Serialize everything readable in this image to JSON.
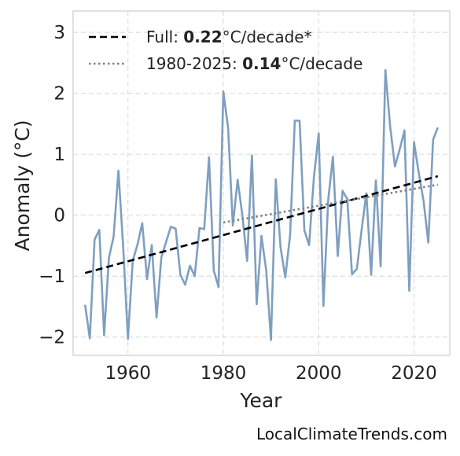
{
  "chart_data": {
    "type": "line",
    "xlabel": "Year",
    "ylabel": "Anomaly (°C)",
    "xlim": [
      1948.5,
      2027.5
    ],
    "ylim": [
      -2.3,
      3.35
    ],
    "x_ticks": [
      1960,
      1980,
      2000,
      2020
    ],
    "x_tick_labels": [
      "1960",
      "1980",
      "2000",
      "2020"
    ],
    "y_ticks": [
      -2,
      -1,
      0,
      1,
      2,
      3
    ],
    "y_tick_labels": [
      "−2",
      "−1",
      "0",
      "1",
      "2",
      "3"
    ],
    "grid": true,
    "legend_position": "top-left",
    "series": [
      {
        "style": "solid",
        "color": "#7f9fc0",
        "x": [
          1951,
          1952,
          1953,
          1954,
          1955,
          1956,
          1957,
          1958,
          1959,
          1960,
          1961,
          1962,
          1963,
          1964,
          1965,
          1966,
          1967,
          1968,
          1969,
          1970,
          1971,
          1972,
          1973,
          1974,
          1975,
          1976,
          1977,
          1978,
          1979,
          1980,
          1981,
          1982,
          1983,
          1984,
          1985,
          1986,
          1987,
          1988,
          1989,
          1990,
          1991,
          1992,
          1993,
          1994,
          1995,
          1996,
          1997,
          1998,
          1999,
          2000,
          2001,
          2002,
          2003,
          2004,
          2005,
          2006,
          2007,
          2008,
          2009,
          2010,
          2011,
          2012,
          2013,
          2014,
          2015,
          2016,
          2017,
          2018,
          2019,
          2020,
          2021,
          2022,
          2023,
          2024,
          2025
        ],
        "y": [
          -1.47,
          -2.02,
          -0.4,
          -0.24,
          -1.97,
          -0.7,
          -0.35,
          0.73,
          -0.53,
          -2.03,
          -0.75,
          -0.48,
          -0.13,
          -1.05,
          -0.49,
          -1.68,
          -0.69,
          -0.44,
          -0.19,
          -0.22,
          -0.98,
          -1.14,
          -0.83,
          -1.0,
          -0.21,
          -0.23,
          0.95,
          -0.91,
          -1.18,
          2.03,
          1.43,
          -0.17,
          0.58,
          0.0,
          -0.75,
          0.98,
          -1.46,
          -0.34,
          -0.91,
          -2.05,
          0.59,
          -0.53,
          -1.02,
          -0.33,
          1.55,
          1.55,
          -0.25,
          -0.49,
          0.62,
          1.34,
          -1.49,
          0.25,
          0.96,
          -0.67,
          0.4,
          0.27,
          -0.97,
          -0.88,
          -0.25,
          0.36,
          -0.98,
          0.57,
          -0.84,
          2.38,
          1.45,
          0.8,
          1.08,
          1.39,
          -1.24,
          1.2,
          0.69,
          0.23,
          -0.45,
          1.24,
          1.44
        ]
      },
      {
        "name": "Full: 0.22°C/decade*",
        "style": "dashed",
        "color": "#000000",
        "x": [
          1951,
          2025
        ],
        "y": [
          -0.95,
          0.64
        ]
      },
      {
        "name": "1980-2025: 0.14°C/decade",
        "style": "dotted",
        "color": "#808080",
        "x": [
          1980,
          2025
        ],
        "y": [
          -0.12,
          0.5
        ]
      }
    ],
    "legend": [
      {
        "prefix": "Full: ",
        "value": "0.22",
        "suffix": "°C/decade*"
      },
      {
        "prefix": "1980-2025: ",
        "value": "0.14",
        "suffix": "°C/decade"
      }
    ]
  },
  "source_credit": "LocalClimateTrends.com"
}
